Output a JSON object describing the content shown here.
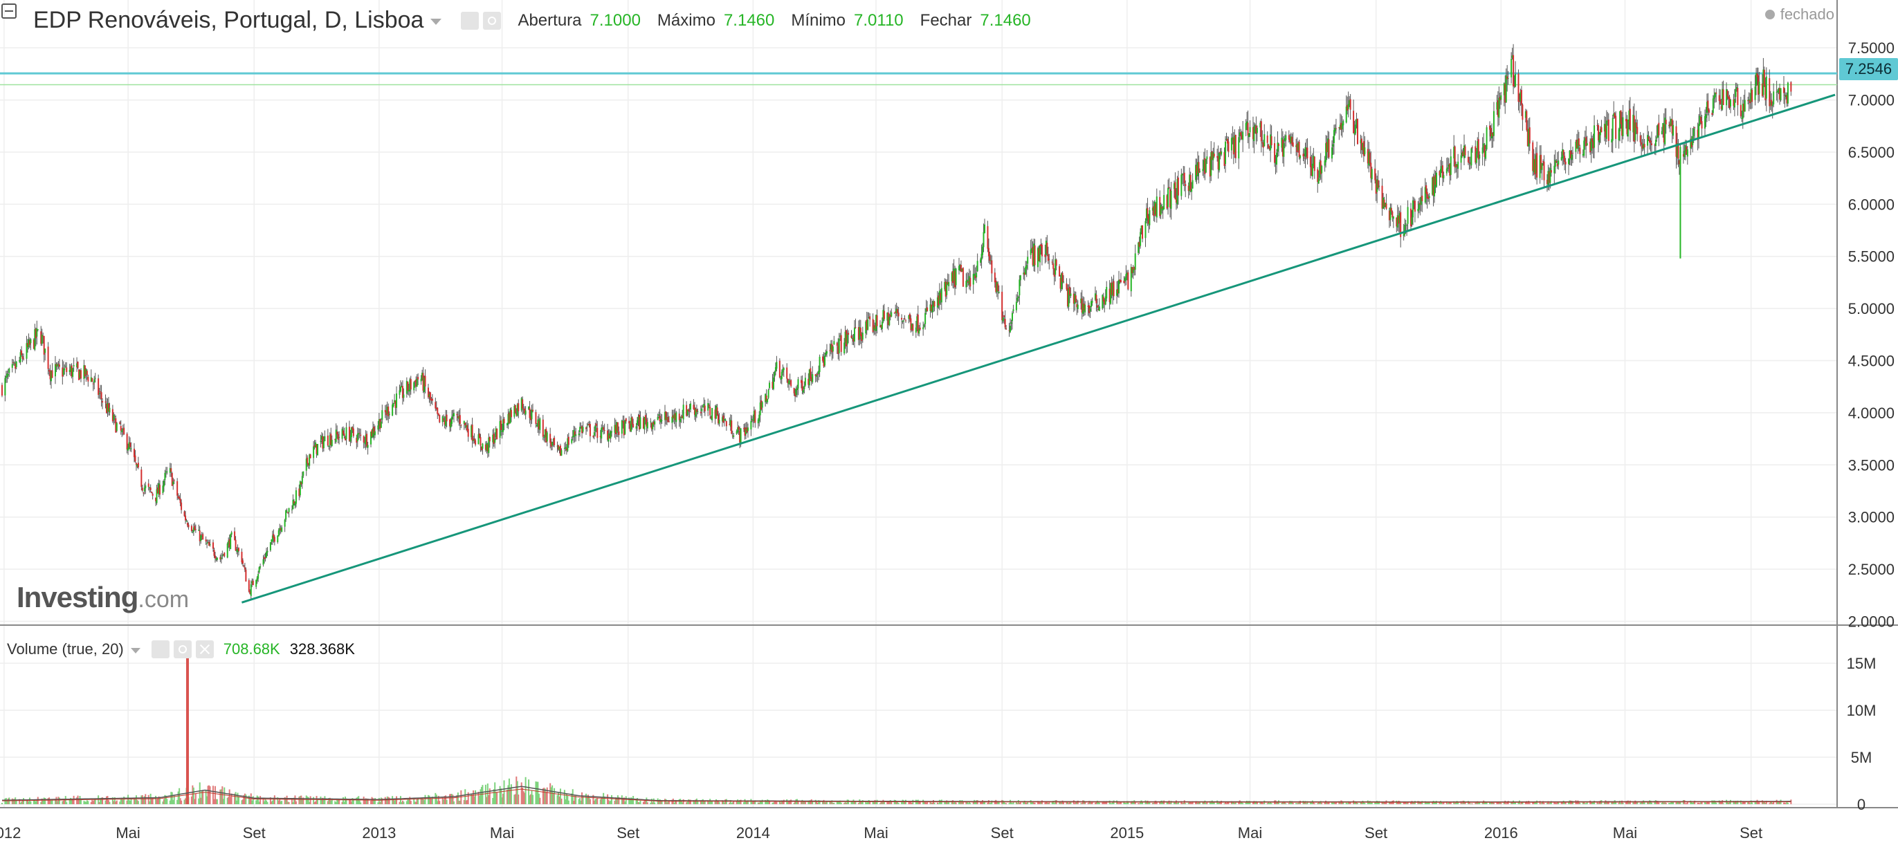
{
  "header": {
    "title": "EDP Renováveis, Portugal, D, Lisboa",
    "ohlc": [
      {
        "label": "Abertura",
        "value": "7.1000"
      },
      {
        "label": "Máximo",
        "value": "7.1460"
      },
      {
        "label": "Mínimo",
        "value": "7.0110"
      },
      {
        "label": "Fechar",
        "value": "7.1460"
      }
    ],
    "status": "fechado"
  },
  "logo": {
    "main": "Investing",
    "suffix": ".com"
  },
  "volume_panel": {
    "title": "Volume (true, 20)",
    "value_a": "708.68K",
    "value_b": "328.368K"
  },
  "current_price_label": "7.2546",
  "colors": {
    "up": "#26b526",
    "down": "#d32f2f",
    "trendline": "#16967a",
    "price_line": "#5fc9d4",
    "grid": "#eeeeee",
    "axis": "#888888"
  },
  "chart_data": [
    {
      "type": "candlestick",
      "xlabels": [
        "2012",
        "Mai",
        "Set",
        "2013",
        "Mai",
        "Set",
        "2014",
        "Mai",
        "Set",
        "2015",
        "Mai",
        "Set",
        "2016",
        "Mai",
        "Set"
      ],
      "xlabel_dates": [
        "2012-01-01",
        "2012-05-01",
        "2012-09-01",
        "2013-01-01",
        "2013-05-01",
        "2013-09-01",
        "2014-01-01",
        "2014-05-01",
        "2014-09-01",
        "2015-01-01",
        "2015-05-01",
        "2015-09-01",
        "2016-01-01",
        "2016-05-01",
        "2016-09-01"
      ],
      "xlim": [
        "2011-12-28",
        "2016-11-24"
      ],
      "ylim": [
        1.97,
        7.72
      ],
      "yticks": [
        "7.5000",
        "7.0000",
        "6.5000",
        "6.0000",
        "5.5000",
        "5.0000",
        "4.5000",
        "4.0000",
        "3.5000",
        "3.0000",
        "2.5000",
        "2.0000"
      ],
      "close_path": [
        [
          "2011-12-30",
          4.25
        ],
        [
          "2012-01-20",
          4.55
        ],
        [
          "2012-02-05",
          4.78
        ],
        [
          "2012-02-15",
          4.4
        ],
        [
          "2012-03-10",
          4.4
        ],
        [
          "2012-03-25",
          4.35
        ],
        [
          "2012-04-15",
          3.95
        ],
        [
          "2012-05-01",
          3.7
        ],
        [
          "2012-05-15",
          3.3
        ],
        [
          "2012-05-28",
          3.2
        ],
        [
          "2012-06-10",
          3.45
        ],
        [
          "2012-06-25",
          3.0
        ],
        [
          "2012-07-15",
          2.75
        ],
        [
          "2012-07-30",
          2.6
        ],
        [
          "2012-08-10",
          2.8
        ],
        [
          "2012-08-20",
          2.6
        ],
        [
          "2012-08-27",
          2.28
        ],
        [
          "2012-09-15",
          2.7
        ],
        [
          "2012-10-01",
          3.0
        ],
        [
          "2012-10-15",
          3.25
        ],
        [
          "2012-10-25",
          3.6
        ],
        [
          "2012-11-10",
          3.75
        ],
        [
          "2012-12-01",
          3.8
        ],
        [
          "2012-12-20",
          3.75
        ],
        [
          "2013-01-15",
          4.1
        ],
        [
          "2013-02-10",
          4.35
        ],
        [
          "2013-03-01",
          3.9
        ],
        [
          "2013-03-20",
          3.95
        ],
        [
          "2013-04-15",
          3.65
        ],
        [
          "2013-05-10",
          4.0
        ],
        [
          "2013-05-20",
          4.1
        ],
        [
          "2013-06-05",
          3.9
        ],
        [
          "2013-06-25",
          3.6
        ],
        [
          "2013-07-15",
          3.85
        ],
        [
          "2013-08-10",
          3.8
        ],
        [
          "2013-09-10",
          3.9
        ],
        [
          "2013-10-15",
          3.95
        ],
        [
          "2013-11-01",
          4.05
        ],
        [
          "2013-11-25",
          4.0
        ],
        [
          "2013-12-20",
          3.78
        ],
        [
          "2014-01-10",
          4.05
        ],
        [
          "2014-01-25",
          4.45
        ],
        [
          "2014-02-10",
          4.2
        ],
        [
          "2014-03-01",
          4.4
        ],
        [
          "2014-03-25",
          4.65
        ],
        [
          "2014-04-20",
          4.8
        ],
        [
          "2014-05-20",
          4.95
        ],
        [
          "2014-06-10",
          4.85
        ],
        [
          "2014-06-30",
          5.05
        ],
        [
          "2014-07-20",
          5.35
        ],
        [
          "2014-08-01",
          5.2
        ],
        [
          "2014-08-15",
          5.7
        ],
        [
          "2014-09-05",
          4.75
        ],
        [
          "2014-09-25",
          5.5
        ],
        [
          "2014-10-15",
          5.55
        ],
        [
          "2014-11-05",
          5.1
        ],
        [
          "2014-11-25",
          5.0
        ],
        [
          "2014-12-15",
          5.15
        ],
        [
          "2015-01-05",
          5.3
        ],
        [
          "2015-01-20",
          5.9
        ],
        [
          "2015-02-10",
          6.05
        ],
        [
          "2015-03-10",
          6.3
        ],
        [
          "2015-04-15",
          6.55
        ],
        [
          "2015-05-05",
          6.75
        ],
        [
          "2015-05-25",
          6.5
        ],
        [
          "2015-06-15",
          6.6
        ],
        [
          "2015-07-05",
          6.3
        ],
        [
          "2015-07-20",
          6.65
        ],
        [
          "2015-08-05",
          6.9
        ],
        [
          "2015-08-20",
          6.55
        ],
        [
          "2015-09-05",
          6.05
        ],
        [
          "2015-09-25",
          5.8
        ],
        [
          "2015-10-15",
          6.0
        ],
        [
          "2015-11-05",
          6.35
        ],
        [
          "2015-11-25",
          6.5
        ],
        [
          "2015-12-15",
          6.55
        ],
        [
          "2016-01-05",
          7.1
        ],
        [
          "2016-01-12",
          7.3
        ],
        [
          "2016-01-22",
          6.9
        ],
        [
          "2016-02-02",
          6.4
        ],
        [
          "2016-02-15",
          6.3
        ],
        [
          "2016-03-10",
          6.5
        ],
        [
          "2016-04-10",
          6.7
        ],
        [
          "2016-05-01",
          6.8
        ],
        [
          "2016-05-25",
          6.6
        ],
        [
          "2016-06-15",
          6.75
        ],
        [
          "2016-06-24",
          6.45
        ],
        [
          "2016-07-15",
          6.8
        ],
        [
          "2016-08-05",
          7.05
        ],
        [
          "2016-08-25",
          6.95
        ],
        [
          "2016-09-10",
          7.2
        ],
        [
          "2016-09-25",
          6.95
        ],
        [
          "2016-10-10",
          7.15
        ]
      ],
      "spike_low": {
        "date": "2016-06-24",
        "value": 5.48
      },
      "trendline": {
        "start": [
          "2012-08-20",
          2.18
        ],
        "end": [
          "2016-11-22",
          7.05
        ]
      },
      "price_lines": [
        7.2546,
        7.146
      ]
    },
    {
      "type": "bar",
      "title": "Volume (true, 20)",
      "yticks": [
        "15M",
        "10M",
        "5M",
        "0"
      ],
      "ylim": [
        0,
        17000000
      ],
      "spike": {
        "date": "2012-06-28",
        "value": 16500000
      },
      "baseline": [
        [
          "2011-12-30",
          420000
        ],
        [
          "2012-06-01",
          700000
        ],
        [
          "2012-07-15",
          1500000
        ],
        [
          "2012-09-01",
          650000
        ],
        [
          "2013-01-01",
          500000
        ],
        [
          "2013-03-15",
          800000
        ],
        [
          "2013-05-20",
          1900000
        ],
        [
          "2013-07-15",
          900000
        ],
        [
          "2013-10-01",
          380000
        ],
        [
          "2014-06-01",
          300000
        ],
        [
          "2015-01-01",
          260000
        ],
        [
          "2016-01-01",
          240000
        ],
        [
          "2016-10-15",
          300000
        ]
      ]
    }
  ]
}
